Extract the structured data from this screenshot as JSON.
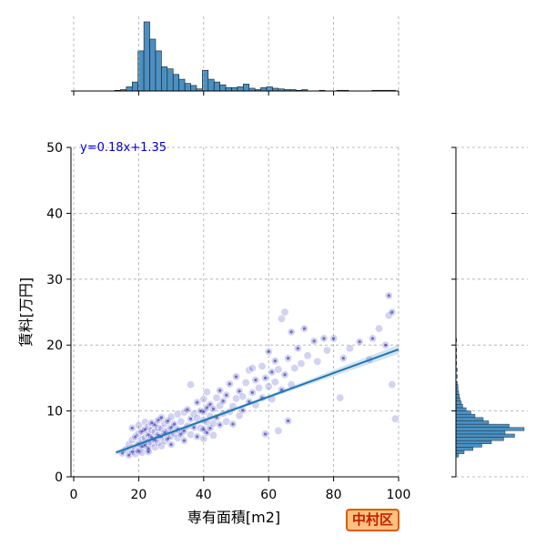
{
  "chart_data": {
    "type": "scatter",
    "title": "",
    "xlabel": "専有面積[m2]",
    "ylabel": "賃料[万円]",
    "xlim": [
      0,
      100
    ],
    "ylim": [
      0,
      50
    ],
    "xticks": [
      0,
      20,
      40,
      60,
      80,
      100
    ],
    "yticks": [
      0,
      10,
      20,
      30,
      40,
      50
    ],
    "grid": true,
    "point_color": "#3030c0",
    "line_color": "#1f77b4",
    "hist_color": "#4a90c2",
    "regression": {
      "label": "y=0.18x+1.35",
      "slope": 0.18,
      "intercept": 1.35,
      "x_range": [
        13,
        100
      ]
    },
    "x_marginal_hist": {
      "bin_width": 1.8,
      "bins": [
        {
          "x": 12.6,
          "h": 1
        },
        {
          "x": 14.4,
          "h": 2
        },
        {
          "x": 16.2,
          "h": 6
        },
        {
          "x": 18.0,
          "h": 13
        },
        {
          "x": 19.8,
          "h": 58
        },
        {
          "x": 21.6,
          "h": 100
        },
        {
          "x": 23.4,
          "h": 75
        },
        {
          "x": 25.2,
          "h": 58
        },
        {
          "x": 27.0,
          "h": 35
        },
        {
          "x": 28.8,
          "h": 32
        },
        {
          "x": 30.6,
          "h": 24
        },
        {
          "x": 32.4,
          "h": 17
        },
        {
          "x": 34.2,
          "h": 11
        },
        {
          "x": 36.0,
          "h": 8
        },
        {
          "x": 37.8,
          "h": 3
        },
        {
          "x": 39.6,
          "h": 30
        },
        {
          "x": 41.4,
          "h": 17
        },
        {
          "x": 43.2,
          "h": 13
        },
        {
          "x": 45.0,
          "h": 9
        },
        {
          "x": 46.8,
          "h": 5
        },
        {
          "x": 48.6,
          "h": 5
        },
        {
          "x": 50.4,
          "h": 6
        },
        {
          "x": 52.2,
          "h": 10
        },
        {
          "x": 54.0,
          "h": 4
        },
        {
          "x": 55.8,
          "h": 2
        },
        {
          "x": 57.6,
          "h": 5
        },
        {
          "x": 59.4,
          "h": 6
        },
        {
          "x": 61.2,
          "h": 4
        },
        {
          "x": 63.0,
          "h": 3
        },
        {
          "x": 64.8,
          "h": 2
        },
        {
          "x": 66.6,
          "h": 2
        },
        {
          "x": 68.4,
          "h": 1
        },
        {
          "x": 70.2,
          "h": 2
        },
        {
          "x": 75.6,
          "h": 1
        },
        {
          "x": 81.0,
          "h": 1
        },
        {
          "x": 82.8,
          "h": 1
        },
        {
          "x": 91.8,
          "h": 1
        },
        {
          "x": 93.6,
          "h": 1
        },
        {
          "x": 95.4,
          "h": 1
        },
        {
          "x": 97.2,
          "h": 1
        }
      ]
    },
    "y_marginal_hist": {
      "bin_width": 0.5,
      "bins": [
        {
          "y": 3.0,
          "h": 4
        },
        {
          "y": 3.5,
          "h": 12
        },
        {
          "y": 4.0,
          "h": 25
        },
        {
          "y": 4.5,
          "h": 38
        },
        {
          "y": 5.0,
          "h": 52
        },
        {
          "y": 5.5,
          "h": 70
        },
        {
          "y": 6.0,
          "h": 86
        },
        {
          "y": 6.5,
          "h": 72
        },
        {
          "y": 7.0,
          "h": 100
        },
        {
          "y": 7.5,
          "h": 78
        },
        {
          "y": 8.0,
          "h": 48
        },
        {
          "y": 8.5,
          "h": 40
        },
        {
          "y": 9.0,
          "h": 28
        },
        {
          "y": 9.5,
          "h": 22
        },
        {
          "y": 10.0,
          "h": 15
        },
        {
          "y": 10.5,
          "h": 10
        },
        {
          "y": 11.0,
          "h": 8
        },
        {
          "y": 11.5,
          "h": 6
        },
        {
          "y": 12.0,
          "h": 5
        },
        {
          "y": 12.5,
          "h": 4
        },
        {
          "y": 13.0,
          "h": 3
        },
        {
          "y": 13.5,
          "h": 3
        },
        {
          "y": 14.0,
          "h": 2
        },
        {
          "y": 15.0,
          "h": 2
        },
        {
          "y": 16.0,
          "h": 2
        },
        {
          "y": 17.0,
          "h": 1
        },
        {
          "y": 18.0,
          "h": 1
        },
        {
          "y": 19.0,
          "h": 1
        },
        {
          "y": 20.5,
          "h": 1
        }
      ]
    },
    "points": [
      [
        15,
        3.6
      ],
      [
        16,
        4.1
      ],
      [
        17,
        3.3
      ],
      [
        17,
        4.9
      ],
      [
        18,
        3.8
      ],
      [
        18,
        5.6
      ],
      [
        18,
        7.4
      ],
      [
        19,
        4.2
      ],
      [
        19,
        6.1
      ],
      [
        19,
        3.5
      ],
      [
        20,
        5.0
      ],
      [
        20,
        6.6
      ],
      [
        20,
        3.9
      ],
      [
        20,
        7.8
      ],
      [
        21,
        4.6
      ],
      [
        21,
        5.7
      ],
      [
        21,
        6.9
      ],
      [
        21,
        3.7
      ],
      [
        22,
        4.8
      ],
      [
        22,
        5.9
      ],
      [
        22,
        7.2
      ],
      [
        22,
        8.3
      ],
      [
        23,
        4.3
      ],
      [
        23,
        5.3
      ],
      [
        23,
        6.4
      ],
      [
        23,
        7.6
      ],
      [
        23,
        3.8
      ],
      [
        24,
        5.1
      ],
      [
        24,
        6.0
      ],
      [
        24,
        7.1
      ],
      [
        24,
        8.2
      ],
      [
        25,
        4.5
      ],
      [
        25,
        5.6
      ],
      [
        25,
        6.8
      ],
      [
        25,
        7.9
      ],
      [
        26,
        5.2
      ],
      [
        26,
        6.3
      ],
      [
        26,
        7.4
      ],
      [
        26,
        8.6
      ],
      [
        27,
        4.7
      ],
      [
        27,
        6.1
      ],
      [
        27,
        7.3
      ],
      [
        27,
        9.0
      ],
      [
        28,
        5.4
      ],
      [
        28,
        6.7
      ],
      [
        28,
        8.1
      ],
      [
        29,
        5.8
      ],
      [
        29,
        7.0
      ],
      [
        29,
        8.5
      ],
      [
        30,
        6.2
      ],
      [
        30,
        7.5
      ],
      [
        30,
        9.1
      ],
      [
        30,
        4.9
      ],
      [
        31,
        6.6
      ],
      [
        31,
        8.0
      ],
      [
        32,
        5.9
      ],
      [
        32,
        7.2
      ],
      [
        32,
        9.5
      ],
      [
        33,
        6.5
      ],
      [
        33,
        8.4
      ],
      [
        34,
        7.0
      ],
      [
        34,
        9.8
      ],
      [
        34,
        5.5
      ],
      [
        35,
        7.7
      ],
      [
        35,
        10.2
      ],
      [
        36,
        6.4
      ],
      [
        36,
        8.8
      ],
      [
        36,
        14.0
      ],
      [
        37,
        7.5
      ],
      [
        37,
        9.6
      ],
      [
        38,
        6.1
      ],
      [
        38,
        8.9
      ],
      [
        38,
        11.3
      ],
      [
        39,
        7.4
      ],
      [
        39,
        10.0
      ],
      [
        40,
        5.8
      ],
      [
        40,
        7.2
      ],
      [
        40,
        8.6
      ],
      [
        40,
        9.9
      ],
      [
        40,
        11.8
      ],
      [
        41,
        6.7
      ],
      [
        41,
        8.3
      ],
      [
        41,
        10.5
      ],
      [
        41,
        12.9
      ],
      [
        42,
        7.4
      ],
      [
        42,
        9.2
      ],
      [
        42,
        11.0
      ],
      [
        43,
        8.1
      ],
      [
        43,
        10.3
      ],
      [
        43,
        6.3
      ],
      [
        44,
        9.0
      ],
      [
        44,
        12.0
      ],
      [
        45,
        7.9
      ],
      [
        45,
        10.8
      ],
      [
        45,
        13.1
      ],
      [
        46,
        9.6
      ],
      [
        46,
        11.5
      ],
      [
        47,
        8.4
      ],
      [
        47,
        12.4
      ],
      [
        48,
        9.9
      ],
      [
        48,
        14.1
      ],
      [
        49,
        10.7
      ],
      [
        49,
        8.0
      ],
      [
        50,
        11.9
      ],
      [
        50,
        15.2
      ],
      [
        51,
        9.3
      ],
      [
        51,
        13.0
      ],
      [
        52,
        12.2
      ],
      [
        52,
        10.1
      ],
      [
        53,
        14.3
      ],
      [
        54,
        11.4
      ],
      [
        54,
        16.2
      ],
      [
        55,
        12.8
      ],
      [
        56,
        10.9
      ],
      [
        56,
        14.7
      ],
      [
        57,
        13.5
      ],
      [
        58,
        12.0
      ],
      [
        58,
        16.8
      ],
      [
        59,
        15.0
      ],
      [
        60,
        13.7
      ],
      [
        60,
        19.0
      ],
      [
        61,
        11.8
      ],
      [
        61,
        15.9
      ],
      [
        62,
        14.4
      ],
      [
        62,
        17.6
      ],
      [
        63,
        16.3
      ],
      [
        64,
        13.2
      ],
      [
        64,
        24.0
      ],
      [
        65,
        15.5
      ],
      [
        65,
        25.0
      ],
      [
        66,
        18.0
      ],
      [
        67,
        14.0
      ],
      [
        67,
        22.0
      ],
      [
        68,
        16.5
      ],
      [
        69,
        19.5
      ],
      [
        70,
        17.2
      ],
      [
        71,
        22.5
      ],
      [
        72,
        18.4
      ],
      [
        74,
        20.6
      ],
      [
        75,
        17.5
      ],
      [
        77,
        21.0
      ],
      [
        78,
        19.2
      ],
      [
        80,
        21.0
      ],
      [
        82,
        12.0
      ],
      [
        83,
        18.0
      ],
      [
        85,
        19.5
      ],
      [
        88,
        20.5
      ],
      [
        91,
        17.8
      ],
      [
        92,
        21.0
      ],
      [
        94,
        22.5
      ],
      [
        96,
        20.0
      ],
      [
        97,
        24.5
      ],
      [
        97,
        27.5
      ],
      [
        98,
        14.0
      ],
      [
        98,
        25.0
      ],
      [
        99,
        8.8
      ],
      [
        59,
        6.5
      ],
      [
        63,
        7.0
      ],
      [
        66,
        8.5
      ],
      [
        55,
        16.5
      ]
    ]
  },
  "badge": {
    "label": "中村区"
  }
}
